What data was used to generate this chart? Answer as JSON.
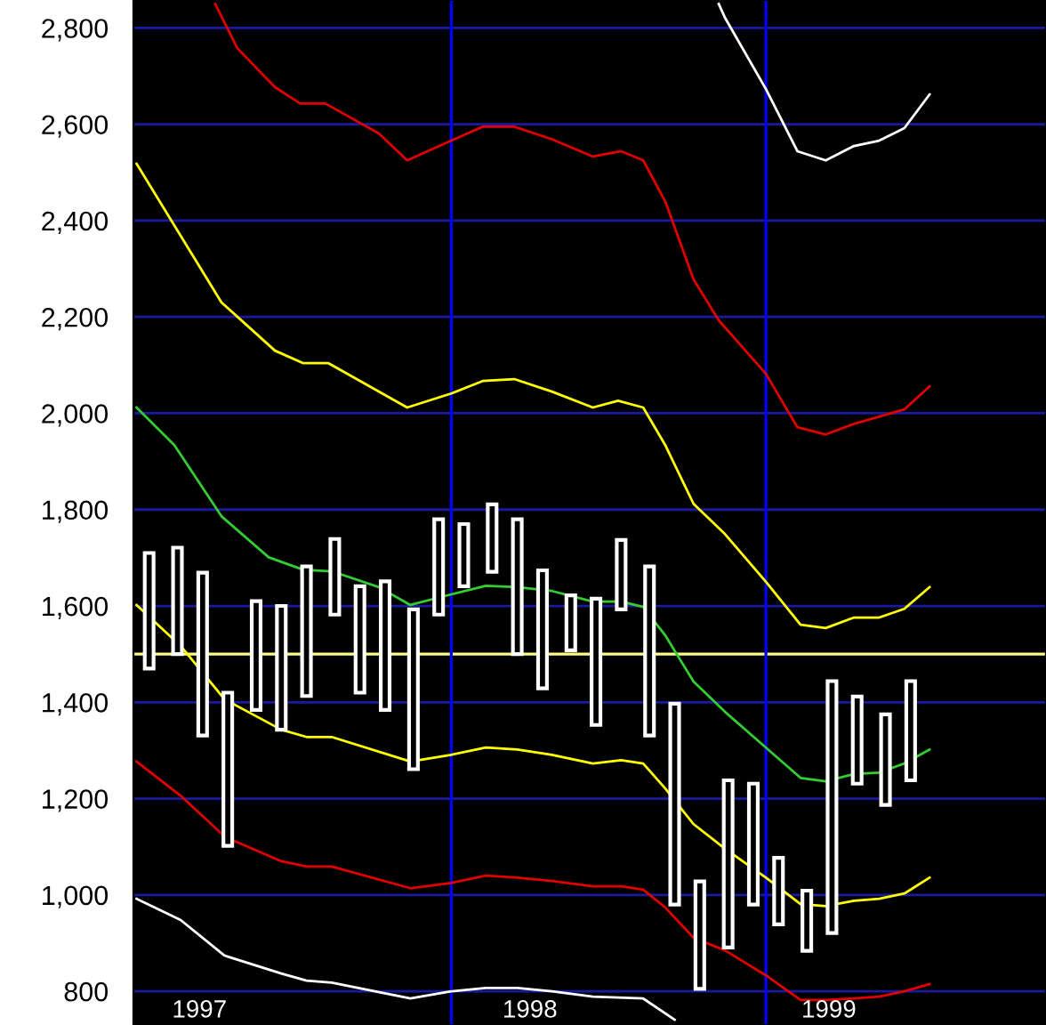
{
  "chart_data": {
    "type": "candlestick",
    "x": [
      1997.04,
      1997.13,
      1997.21,
      1997.29,
      1997.38,
      1997.46,
      1997.54,
      1997.63,
      1997.71,
      1997.79,
      1997.88,
      1997.96,
      1998.04,
      1998.13,
      1998.21,
      1998.29,
      1998.38,
      1998.46,
      1998.54,
      1998.63,
      1998.71,
      1998.79,
      1998.88,
      1998.96,
      1999.04,
      1999.13,
      1999.21,
      1999.29,
      1999.38,
      1999.46
    ],
    "ohlc": [
      [
        1470,
        1710,
        1470,
        1710
      ],
      [
        1500,
        1721,
        1500,
        1721
      ],
      [
        1331,
        1669,
        1331,
        1669
      ],
      [
        1102,
        1420,
        1102,
        1420
      ],
      [
        1384,
        1610,
        1384,
        1610
      ],
      [
        1343,
        1600,
        1343,
        1600
      ],
      [
        1413,
        1682,
        1413,
        1682
      ],
      [
        1582,
        1739,
        1582,
        1739
      ],
      [
        1420,
        1641,
        1420,
        1641
      ],
      [
        1384,
        1651,
        1384,
        1651
      ],
      [
        1261,
        1593,
        1261,
        1593
      ],
      [
        1582,
        1780,
        1582,
        1780
      ],
      [
        1641,
        1770,
        1641,
        1770
      ],
      [
        1671,
        1811,
        1671,
        1811
      ],
      [
        1500,
        1780,
        1500,
        1780
      ],
      [
        1429,
        1674,
        1429,
        1674
      ],
      [
        1508,
        1622,
        1508,
        1622
      ],
      [
        1353,
        1615,
        1353,
        1615
      ],
      [
        1593,
        1737,
        1593,
        1737
      ],
      [
        1331,
        1682,
        1331,
        1682
      ],
      [
        980,
        1397,
        980,
        1397
      ],
      [
        805,
        1028,
        805,
        1028
      ],
      [
        891,
        1238,
        891,
        1238
      ],
      [
        980,
        1231,
        980,
        1231
      ],
      [
        939,
        1077,
        939,
        1077
      ],
      [
        884,
        1009,
        884,
        1009
      ],
      [
        921,
        1444,
        921,
        1444
      ],
      [
        1231,
        1412,
        1231,
        1412
      ],
      [
        1187,
        1375,
        1187,
        1375
      ],
      [
        1238,
        1444,
        1238,
        1444
      ]
    ],
    "color": "#ffffff",
    "series": [
      {
        "type": "line",
        "color": "#ffffff",
        "x": [
          1998.85,
          1998.87,
          1999.0,
          1999.1,
          1999.19,
          1999.28,
          1999.36,
          1999.44,
          1999.52
        ],
        "values": [
          2850,
          2821,
          2673,
          2544,
          2525,
          2555,
          2566,
          2592,
          2662
        ]
      },
      {
        "type": "line",
        "color": "#e00000",
        "x": [
          1997.25,
          1997.32,
          1997.44,
          1997.52,
          1997.6,
          1997.77,
          1997.86,
          1998.0,
          1998.1,
          1998.2,
          1998.32,
          1998.45,
          1998.54,
          1998.61,
          1998.68,
          1998.77,
          1998.85,
          1999.0,
          1999.1,
          1999.19,
          1999.28,
          1999.44,
          1999.52
        ],
        "values": [
          2850,
          2758,
          2677,
          2643,
          2643,
          2581,
          2525,
          2566,
          2595,
          2595,
          2569,
          2533,
          2544,
          2525,
          2440,
          2278,
          2193,
          2082,
          1971,
          1956,
          1978,
          2008,
          2056
        ]
      },
      {
        "type": "line",
        "color": "#ffff00",
        "x": [
          1997.0,
          1997.27,
          1997.44,
          1997.53,
          1997.61,
          1997.86,
          1998.0,
          1998.1,
          1998.2,
          1998.32,
          1998.45,
          1998.53,
          1998.61,
          1998.68,
          1998.77,
          1998.87,
          1999.0,
          1999.11,
          1999.19,
          1999.28,
          1999.36,
          1999.44,
          1999.52
        ],
        "values": [
          2518,
          2230,
          2130,
          2104,
          2104,
          2012,
          2041,
          2067,
          2071,
          2045,
          2012,
          2026,
          2012,
          1934,
          1812,
          1749,
          1650,
          1561,
          1554,
          1576,
          1576,
          1594,
          1639
        ]
      },
      {
        "type": "line",
        "color": "#33cc33",
        "x": [
          1997.0,
          1997.12,
          1997.27,
          1997.42,
          1997.53,
          1997.62,
          1997.77,
          1997.87,
          1998.0,
          1998.11,
          1998.21,
          1998.32,
          1998.45,
          1998.54,
          1998.61,
          1998.68,
          1998.77,
          1998.87,
          1999.0,
          1999.11,
          1999.19,
          1999.28,
          1999.36,
          1999.44,
          1999.52
        ],
        "values": [
          2012,
          1934,
          1786,
          1701,
          1675,
          1672,
          1639,
          1602,
          1624,
          1642,
          1639,
          1631,
          1609,
          1609,
          1598,
          1539,
          1443,
          1380,
          1306,
          1243,
          1236,
          1251,
          1254,
          1273,
          1302
        ]
      },
      {
        "type": "line",
        "color": "#ffff00",
        "x": [
          1997.0,
          1997.14,
          1997.28,
          1997.46,
          1997.54,
          1997.62,
          1997.87,
          1998.0,
          1998.11,
          1998.21,
          1998.32,
          1998.45,
          1998.54,
          1998.61,
          1998.68,
          1998.77,
          1998.87,
          1999.0,
          1999.11,
          1999.19,
          1999.28,
          1999.36,
          1999.44,
          1999.52
        ],
        "values": [
          1602,
          1517,
          1406,
          1343,
          1328,
          1328,
          1277,
          1291,
          1306,
          1302,
          1291,
          1273,
          1280,
          1273,
          1221,
          1147,
          1096,
          1036,
          981,
          977,
          988,
          992,
          1003,
          1036
        ]
      },
      {
        "type": "line",
        "color": "#e00000",
        "x": [
          1997.0,
          1997.14,
          1997.28,
          1997.46,
          1997.54,
          1997.62,
          1997.87,
          1998.0,
          1998.11,
          1998.21,
          1998.32,
          1998.45,
          1998.54,
          1998.61,
          1998.68,
          1998.77,
          1998.87,
          1999.0,
          1999.11,
          1999.19,
          1999.28,
          1999.36,
          1999.44,
          1999.52
        ],
        "values": [
          1277,
          1206,
          1121,
          1070,
          1059,
          1059,
          1014,
          1025,
          1040,
          1036,
          1029,
          1018,
          1018,
          1011,
          974,
          911,
          885,
          833,
          782,
          782,
          785,
          789,
          800,
          815
        ]
      },
      {
        "type": "line",
        "color": "#ffffff",
        "x": [
          1997.0,
          1997.14,
          1997.28,
          1997.46,
          1997.54,
          1997.62,
          1997.87,
          1998.0,
          1998.11,
          1998.21,
          1998.32,
          1998.45,
          1998.61,
          1998.71
        ],
        "values": [
          992,
          948,
          874,
          837,
          822,
          818,
          785,
          800,
          807,
          807,
          800,
          789,
          785,
          741
        ]
      }
    ],
    "xlim": [
      1996.99,
      1999.89
    ],
    "xticks": [
      {
        "value": 1997.2,
        "label": "1997"
      },
      {
        "value": 1998.25,
        "label": "1998"
      },
      {
        "value": 1999.2,
        "label": "1999"
      }
    ],
    "ylim": [
      730,
      2858
    ],
    "yticks": [
      {
        "value": 800,
        "label": "800"
      },
      {
        "value": 1000,
        "label": "1,000"
      },
      {
        "value": 1200,
        "label": "1,200"
      },
      {
        "value": 1400,
        "label": "1,400"
      },
      {
        "value": 1600,
        "label": "1,600"
      },
      {
        "value": 1800,
        "label": "1,800"
      },
      {
        "value": 2000,
        "label": "2,000"
      },
      {
        "value": 2200,
        "label": "2,200"
      },
      {
        "value": 2400,
        "label": "2,400"
      },
      {
        "value": 2600,
        "label": "2,600"
      },
      {
        "value": 2800,
        "label": "2,800"
      }
    ],
    "grid": "y",
    "ref_lines": [
      {
        "axis": "y",
        "value": 1500,
        "color": "#ffff80"
      },
      {
        "axis": "x",
        "value": 1998,
        "color": "#0000ff"
      },
      {
        "axis": "x",
        "value": 1999,
        "color": "#0000ff"
      }
    ],
    "line_style": "solid",
    "marker": "none"
  }
}
